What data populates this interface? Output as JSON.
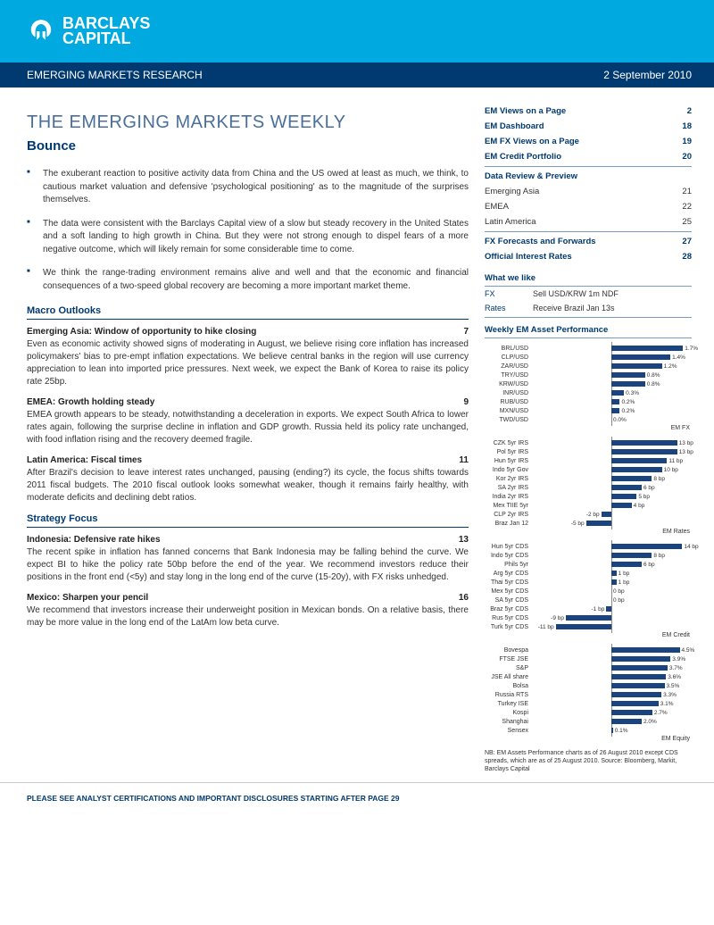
{
  "header": {
    "logo_line1": "BARCLAYS",
    "logo_line2": "CAPITAL",
    "section": "EMERGING MARKETS RESEARCH",
    "date": "2 September 2010"
  },
  "title": "THE EMERGING MARKETS WEEKLY",
  "subtitle": "Bounce",
  "bullets": [
    "The exuberant reaction to positive activity data from China and the US owed at least as much, we think, to cautious market valuation and defensive 'psychological positioning' as to the magnitude of the surprises themselves.",
    "The data were consistent with the Barclays Capital view of a slow but steady recovery in the United States and a soft landing to high growth in China. But they were not strong enough to dispel fears of a more negative outcome, which will likely remain for some considerable time to come.",
    "We think the range-trading environment remains alive and well and that the economic and financial consequences of a two-speed global recovery are becoming a more important market theme."
  ],
  "macro": {
    "header": "Macro Outlooks",
    "items": [
      {
        "title": "Emerging Asia: Window of opportunity to hike closing",
        "page": "7",
        "body": "Even as economic activity showed signs of moderating in August, we believe rising core inflation has increased policymakers' bias to pre-empt inflation expectations. We believe central banks in the region will use currency appreciation to lean into imported price pressures. Next week, we expect the Bank of Korea to raise its policy rate 25bp."
      },
      {
        "title": "EMEA: Growth holding steady",
        "page": "9",
        "body": "EMEA growth appears to be steady, notwithstanding a deceleration in exports. We expect South Africa to lower rates again, following the surprise decline in inflation and GDP growth. Russia held its policy rate unchanged, with food inflation rising and the recovery deemed fragile."
      },
      {
        "title": "Latin America: Fiscal times",
        "page": "11",
        "body": "After Brazil's decision to leave interest rates unchanged, pausing (ending?) its cycle, the focus shifts towards 2011 fiscal budgets. The 2010 fiscal outlook looks somewhat weaker, though it remains fairly healthy, with moderate deficits and declining debt ratios."
      }
    ]
  },
  "strategy": {
    "header": "Strategy Focus",
    "items": [
      {
        "title": "Indonesia: Defensive rate hikes",
        "page": "13",
        "body": "The recent spike in inflation has fanned concerns that Bank Indonesia may be falling behind the curve. We expect BI to hike the policy rate 50bp before the end of the year. We recommend investors reduce their positions in the front end (<5y) and stay long in the long end of the curve (15-20y), with FX risks unhedged."
      },
      {
        "title": "Mexico: Sharpen your pencil",
        "page": "16",
        "body": "We recommend that investors increase their underweight position in Mexican bonds. On a relative basis, there may be more value in the long end of the LatAm low beta curve."
      }
    ]
  },
  "toc": {
    "top": [
      {
        "label": "EM Views on a Page",
        "page": "2"
      },
      {
        "label": "EM Dashboard",
        "page": "18"
      },
      {
        "label": "EM FX Views on a Page",
        "page": "19"
      },
      {
        "label": "EM Credit Portfolio",
        "page": "20"
      }
    ],
    "data_review_header": "Data Review & Preview",
    "data_review": [
      {
        "label": "Emerging Asia",
        "page": "21"
      },
      {
        "label": "EMEA",
        "page": "22"
      },
      {
        "label": "Latin America",
        "page": "25"
      }
    ],
    "bottom": [
      {
        "label": "FX Forecasts and Forwards",
        "page": "27"
      },
      {
        "label": "Official Interest Rates",
        "page": "28"
      }
    ]
  },
  "what_we_like": {
    "header": "What we like",
    "rows": [
      {
        "k": "FX",
        "v": "Sell USD/KRW 1m NDF"
      },
      {
        "k": "Rates",
        "v": "Receive Brazil Jan 13s"
      }
    ]
  },
  "charts": {
    "header": "Weekly EM Asset Performance",
    "blocks": [
      {
        "category": "EM FX",
        "max": 1.8,
        "items": [
          {
            "label": "BRL/USD",
            "value": 1.7,
            "txt": "1.7%"
          },
          {
            "label": "CLP/USD",
            "value": 1.4,
            "txt": "1.4%"
          },
          {
            "label": "ZAR/USD",
            "value": 1.2,
            "txt": "1.2%"
          },
          {
            "label": "TRY/USD",
            "value": 0.8,
            "txt": "0.8%"
          },
          {
            "label": "KRW/USD",
            "value": 0.8,
            "txt": "0.8%"
          },
          {
            "label": "INR/USD",
            "value": 0.3,
            "txt": "0.3%"
          },
          {
            "label": "RUB/USD",
            "value": 0.2,
            "txt": "0.2%"
          },
          {
            "label": "MXN/USD",
            "value": 0.2,
            "txt": "0.2%"
          },
          {
            "label": "TWD/USD",
            "value": 0.0,
            "txt": "0.0%"
          }
        ]
      },
      {
        "category": "EM Rates",
        "max": 15,
        "items": [
          {
            "label": "CZK 5yr IRS",
            "value": 13,
            "txt": "13 bp"
          },
          {
            "label": "Pol 5yr IRS",
            "value": 13,
            "txt": "13 bp"
          },
          {
            "label": "Hun 5yr IRS",
            "value": 11,
            "txt": "11 bp"
          },
          {
            "label": "Indo 5yr Gov",
            "value": 10,
            "txt": "10 bp"
          },
          {
            "label": "Kor 2yr IRS",
            "value": 8,
            "txt": "8 bp"
          },
          {
            "label": "SA 2yr IRS",
            "value": 6,
            "txt": "6 bp"
          },
          {
            "label": "India 2yr IRS",
            "value": 5,
            "txt": "5 bp"
          },
          {
            "label": "Mex TIIE 5yr",
            "value": 4,
            "txt": "4 bp"
          },
          {
            "label": "CLP 2yr IRS",
            "value": -2,
            "txt": "-2 bp"
          },
          {
            "label": "Braz Jan 12",
            "value": -5,
            "txt": "-5 bp"
          }
        ]
      },
      {
        "category": "EM Credit",
        "max": 15,
        "items": [
          {
            "label": "Hun 5yr CDS",
            "value": 14,
            "txt": "14 bp"
          },
          {
            "label": "Indo 5yr CDS",
            "value": 8,
            "txt": "8 bp"
          },
          {
            "label": "Phils 5yr",
            "value": 6,
            "txt": "6 bp"
          },
          {
            "label": "Arg 5yr CDS",
            "value": 1,
            "txt": "1 bp"
          },
          {
            "label": "Thai 5yr CDS",
            "value": 1,
            "txt": "1 bp"
          },
          {
            "label": "Mex 5yr CDS",
            "value": 0,
            "txt": "0 bp"
          },
          {
            "label": "SA 5yr CDS",
            "value": 0,
            "txt": "0 bp"
          },
          {
            "label": "Braz 5yr CDS",
            "value": -1,
            "txt": "-1 bp"
          },
          {
            "label": "Rus 5yr CDS",
            "value": -9,
            "txt": "-9 bp"
          },
          {
            "label": "Turk 5yr CDS",
            "value": -11,
            "txt": "-11 bp"
          }
        ]
      },
      {
        "category": "EM Equity",
        "max": 5,
        "items": [
          {
            "label": "Bovespa",
            "value": 4.5,
            "txt": "4.5%"
          },
          {
            "label": "FTSE JSE",
            "value": 3.9,
            "txt": "3.9%"
          },
          {
            "label": "S&P",
            "value": 3.7,
            "txt": "3.7%"
          },
          {
            "label": "JSE All share",
            "value": 3.6,
            "txt": "3.6%"
          },
          {
            "label": "Bolsa",
            "value": 3.5,
            "txt": "3.5%"
          },
          {
            "label": "Russia RTS",
            "value": 3.3,
            "txt": "3.3%"
          },
          {
            "label": "Turkey ISE",
            "value": 3.1,
            "txt": "3.1%"
          },
          {
            "label": "Kospi",
            "value": 2.7,
            "txt": "2.7%"
          },
          {
            "label": "Shanghai",
            "value": 2.0,
            "txt": "2.0%"
          },
          {
            "label": "Sensex",
            "value": 0.1,
            "txt": "0.1%"
          }
        ]
      }
    ],
    "footnote": "NB: EM Assets Performance charts as of 26 August 2010 except CDS spreads, which are as of 25 August 2010. Source: Bloomberg, Markit, Barclays Capital"
  },
  "footer": "PLEASE SEE ANALYST CERTIFICATIONS AND IMPORTANT DISCLOSURES STARTING AFTER PAGE 29",
  "colors": {
    "brand_blue": "#00a9e0",
    "dark_blue": "#003a70",
    "bar_color": "#1a4480"
  }
}
